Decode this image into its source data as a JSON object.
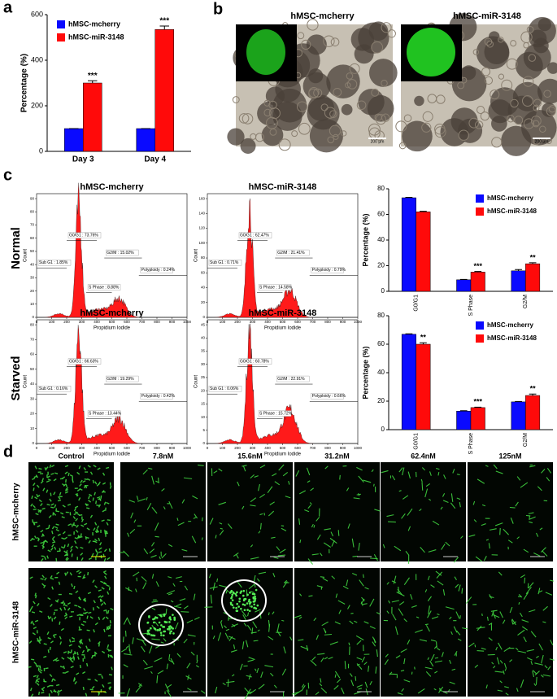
{
  "panel_labels": [
    "a",
    "b",
    "c",
    "d"
  ],
  "chart_data": [
    {
      "type": "bar",
      "ylabel": "Percentage (%)",
      "categories": [
        "Day 3",
        "Day 4"
      ],
      "series": [
        {
          "name": "hMSC-mcherry",
          "color": "#0a0aff",
          "values": [
            100,
            100
          ],
          "errors": [
            0,
            0
          ]
        },
        {
          "name": "hMSC-miR-3148",
          "color": "#ff0a0a",
          "values": [
            300,
            535
          ],
          "errors": [
            10,
            15
          ],
          "significance": [
            "***",
            "***"
          ]
        }
      ],
      "ylim": [
        0,
        600
      ],
      "yticks": [
        0,
        200,
        400,
        600
      ],
      "legend": "upper left"
    },
    {
      "type": "bar",
      "ylabel": "Percentage (%)",
      "categories": [
        "G0/G1",
        "S Phase",
        "G2/M"
      ],
      "series": [
        {
          "name": "hMSC-mcherry",
          "color": "#0a0aff",
          "values": [
            73,
            9,
            16
          ],
          "errors": [
            0.3,
            0.3,
            1
          ]
        },
        {
          "name": "hMSC-miR-3148",
          "color": "#ff0a0a",
          "values": [
            62,
            15,
            21.5
          ],
          "errors": [
            0.5,
            0.5,
            0.8
          ],
          "significance": [
            null,
            "***",
            "**"
          ]
        }
      ],
      "ylim": [
        0,
        80
      ],
      "yticks": [
        0,
        20,
        40,
        60,
        80
      ],
      "legend": "upper right"
    },
    {
      "type": "bar",
      "ylabel": "Percentage (%)",
      "categories": [
        "G0/G1",
        "S Phase",
        "G2/M"
      ],
      "series": [
        {
          "name": "hMSC-mcherry",
          "color": "#0a0aff",
          "values": [
            67,
            13,
            19.5
          ],
          "errors": [
            0.3,
            0.3,
            0.3
          ]
        },
        {
          "name": "hMSC-miR-3148",
          "color": "#ff0a0a",
          "values": [
            60,
            15.5,
            24
          ],
          "errors": [
            1,
            0.3,
            1
          ],
          "significance": [
            "**",
            "***",
            "**"
          ]
        }
      ],
      "ylim": [
        0,
        80
      ],
      "yticks": [
        0,
        20,
        40,
        60,
        80
      ],
      "legend": "upper right"
    }
  ],
  "panel_b": {
    "titles": [
      "hMSC-mcherry",
      "hMSC-miR-3148"
    ],
    "scale_bars": [
      "200 μm",
      "200 μm"
    ]
  },
  "panel_c": {
    "rows": [
      "Normal",
      "Starved"
    ],
    "xlabel": "Propidium Iodide",
    "ylabel": "Count",
    "xticks": [
      0,
      100,
      200,
      300,
      400,
      500,
      600,
      700,
      800,
      900,
      1000
    ],
    "histograms": [
      {
        "title": "hMSC-mcherry",
        "yticks": [
          0,
          10,
          20,
          30,
          40,
          50,
          60,
          70,
          80,
          90
        ],
        "gates": [
          "Sub G1 : 1.85%",
          "G0/G1 : 73.76%",
          "S Phase : 8.88%",
          "G2/M : 15.02%",
          "Polyploidy : 0.24%"
        ]
      },
      {
        "title": "hMSC-miR-3148",
        "yticks": [
          0,
          20,
          40,
          60,
          80,
          100,
          120,
          140,
          160
        ],
        "gates": [
          "Sub G1 : 0.71%",
          "G0/G1 : 62.47%",
          "S Phase : 14.58%",
          "G2/M : 21.41%",
          "Polyploidy : 0.79%"
        ]
      },
      {
        "title": "hMSC-mcherry",
        "yticks": [
          0,
          10,
          20,
          30,
          40,
          50,
          60,
          70,
          80
        ],
        "gates": [
          "Sub G1 : 0.16%",
          "G0/G1 : 66.63%",
          "S Phase : 13.44%",
          "G2/M : 19.29%",
          "Polyploidy : 0.42%"
        ]
      },
      {
        "title": "hMSC-miR-3148",
        "yticks": [
          0,
          5,
          10,
          15,
          20,
          25,
          30,
          35,
          40,
          45
        ],
        "gates": [
          "Sub G1 : 0.06%",
          "G0/G1 : 60.78%",
          "S Phase : 15.72%",
          "G2/M : 22.91%",
          "Polyploidy : 0.66%"
        ]
      }
    ]
  },
  "panel_d": {
    "columns": [
      "Control",
      "7.8nM",
      "15.6nM",
      "31.2nM",
      "62.4nM",
      "125nM"
    ],
    "rows": [
      "hMSC-mcherry",
      "hMSC-miR-3148"
    ]
  }
}
